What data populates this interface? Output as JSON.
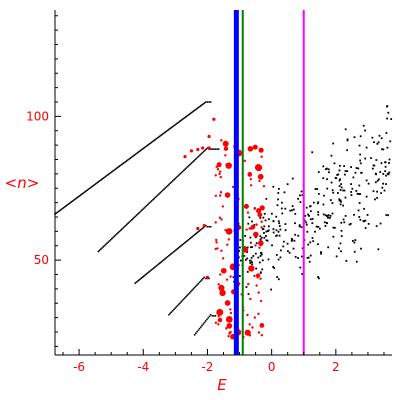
{
  "chart_data": {
    "type": "scatter",
    "title": "",
    "xlabel": "E",
    "ylabel": "<n>",
    "xlim": [
      -6.75,
      3.75
    ],
    "ylim": [
      17,
      137
    ],
    "x_ticks": [
      -6,
      -4,
      -2,
      0,
      2
    ],
    "y_ticks": [
      50,
      100
    ],
    "x_tick_labels": [
      "-6",
      "-4",
      "-2",
      "0",
      "2"
    ],
    "y_tick_labels": [
      "50",
      "100"
    ],
    "colors": {
      "axis": "#000000",
      "labels": "#ff0000",
      "band_points": "#000000",
      "highlighted_points": "#ff0000",
      "line_blue": "#0000ff",
      "line_green": "#008000",
      "line_magenta": "#ff00ff"
    },
    "vertical_lines": [
      {
        "x": -1.1,
        "color": "#0000ff"
      },
      {
        "x": -0.9,
        "color": "#008000"
      },
      {
        "x": 1.0,
        "color": "#ff00ff"
      }
    ],
    "band_series": [
      {
        "from": [
          -6.75,
          66
        ],
        "to": [
          -2.05,
          105
        ],
        "cap_to": -1.85
      },
      {
        "from": [
          -5.4,
          53
        ],
        "to": [
          -2.0,
          89
        ],
        "cap_to": -1.6
      },
      {
        "from": [
          -4.25,
          42
        ],
        "to": [
          -2.05,
          62
        ],
        "cap_to": -1.85
      },
      {
        "from": [
          -3.2,
          31
        ],
        "to": [
          -2.1,
          44
        ],
        "cap_to": -1.95
      },
      {
        "from": [
          -2.4,
          24
        ],
        "to": [
          -1.9,
          31
        ],
        "cap_to": -1.7
      }
    ],
    "scatter_cloud": {
      "x_range": [
        -1.2,
        3.75
      ],
      "y_center_at_xmin": 50,
      "y_slope": 6.5,
      "y_spread_at_xmin": 13,
      "y_spread_slope": 2.5,
      "count": 380
    },
    "red_cluster": {
      "x_range": [
        -1.75,
        -0.2
      ],
      "y_range": [
        22,
        92
      ],
      "count": 130
    }
  }
}
